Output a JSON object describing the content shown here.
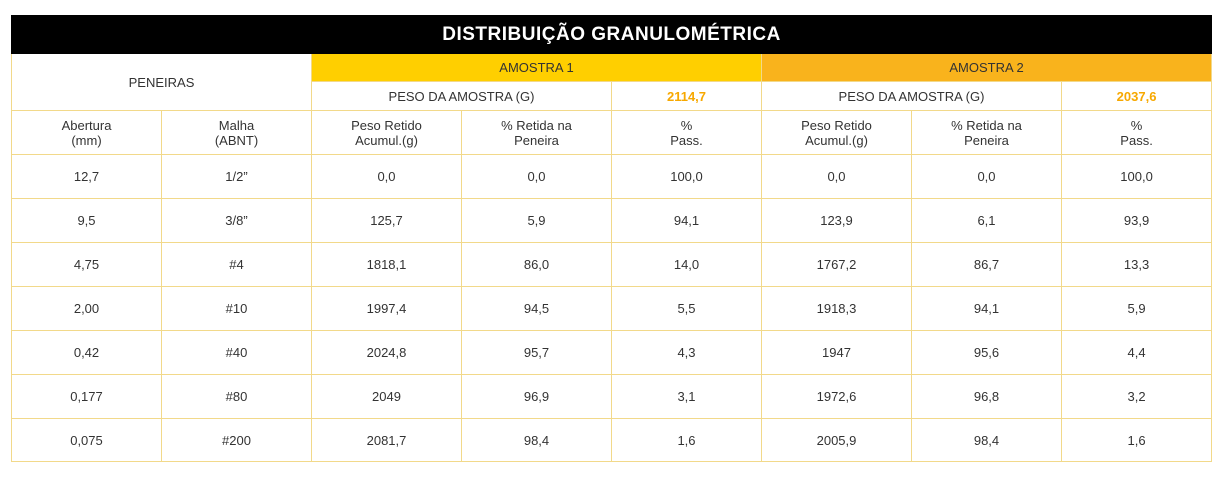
{
  "title": "DISTRIBUIÇÃO GRANULOMÉTRICA",
  "peneiras_label": "PENEIRAS",
  "amostra1": {
    "label": "AMOSTRA 1",
    "peso_label": "PESO DA AMOSTRA (G)",
    "peso_value": "2114,7"
  },
  "amostra2": {
    "label": "AMOSTRA 2",
    "peso_label": "PESO DA AMOSTRA (G)",
    "peso_value": "2037,6"
  },
  "colors": {
    "title_bg": "#000000",
    "amostra1_bg": "#ffcf00",
    "amostra2_bg": "#f9b31c",
    "accent_text": "#f7a800",
    "border": "#f2d98a"
  },
  "columns": [
    [
      "Abertura",
      "(mm)"
    ],
    [
      "Malha",
      "(ABNT)"
    ],
    [
      "Peso Retido",
      "Acumul.(g)"
    ],
    [
      "% Retida na",
      "Peneira"
    ],
    [
      "%",
      "Pass."
    ],
    [
      "Peso Retido",
      "Acumul.(g)"
    ],
    [
      "% Retida na",
      "Peneira"
    ],
    [
      "%",
      "Pass."
    ]
  ],
  "rows": [
    [
      "12,7",
      "1/2”",
      "0,0",
      "0,0",
      "100,0",
      "0,0",
      "0,0",
      "100,0"
    ],
    [
      "9,5",
      "3/8”",
      "125,7",
      "5,9",
      "94,1",
      "123,9",
      "6,1",
      "93,9"
    ],
    [
      "4,75",
      "#4",
      "1818,1",
      "86,0",
      "14,0",
      "1767,2",
      "86,7",
      "13,3"
    ],
    [
      "2,00",
      "#10",
      "1997,4",
      "94,5",
      "5,5",
      "1918,3",
      "94,1",
      "5,9"
    ],
    [
      "0,42",
      "#40",
      "2024,8",
      "95,7",
      "4,3",
      "1947",
      "95,6",
      "4,4"
    ],
    [
      "0,177",
      "#80",
      "2049",
      "96,9",
      "3,1",
      "1972,6",
      "96,8",
      "3,2"
    ],
    [
      "0,075",
      "#200",
      "2081,7",
      "98,4",
      "1,6",
      "2005,9",
      "98,4",
      "1,6"
    ]
  ]
}
